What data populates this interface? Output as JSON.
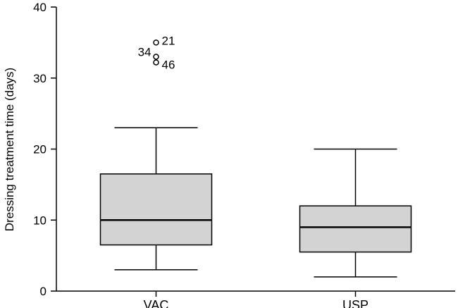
{
  "chart_data": {
    "type": "boxplot",
    "title": "",
    "xlabel": "",
    "ylabel": "Dressing treatment time (days)",
    "ylim": [
      0,
      40
    ],
    "yticks": [
      0,
      10,
      20,
      30,
      40
    ],
    "grid": false,
    "legend": "none",
    "box_fill": "#d3d3d3",
    "line_color": "#000000",
    "categories": [
      "VAC",
      "USP"
    ],
    "boxes": [
      {
        "name": "VAC",
        "whisker_low": 3,
        "q1": 6.5,
        "median": 10,
        "q3": 16.5,
        "whisker_high": 23,
        "outliers": [
          {
            "value": 35,
            "label": "21"
          },
          {
            "value": 33,
            "label": "34"
          },
          {
            "value": 32.2,
            "label": "46"
          }
        ]
      },
      {
        "name": "USP",
        "whisker_low": 2,
        "q1": 5.5,
        "median": 9,
        "q3": 12,
        "whisker_high": 20,
        "outliers": []
      }
    ]
  }
}
